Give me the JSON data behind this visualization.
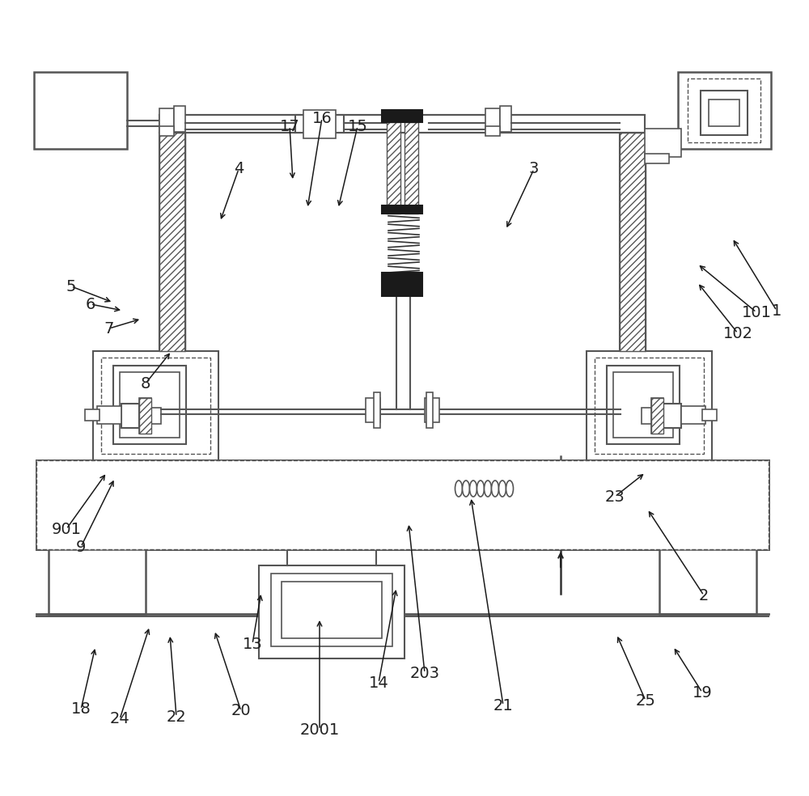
{
  "bg_color": "#ffffff",
  "lc": "#555555",
  "lc_dark": "#222222",
  "label_fontsize": 14,
  "label_color": "#222222",
  "labels_arrows": [
    [
      "1",
      960,
      600,
      905,
      690
    ],
    [
      "2",
      870,
      248,
      800,
      355
    ],
    [
      "3",
      660,
      775,
      625,
      700
    ],
    [
      "4",
      295,
      775,
      272,
      710
    ],
    [
      "5",
      88,
      630,
      140,
      610
    ],
    [
      "6",
      112,
      608,
      152,
      600
    ],
    [
      "7",
      135,
      578,
      175,
      590
    ],
    [
      "8",
      180,
      510,
      212,
      550
    ],
    [
      "9",
      100,
      308,
      142,
      393
    ],
    [
      "901",
      82,
      330,
      132,
      400
    ],
    [
      "13",
      312,
      188,
      323,
      252
    ],
    [
      "14",
      468,
      140,
      490,
      258
    ],
    [
      "15",
      442,
      828,
      418,
      726
    ],
    [
      "16",
      398,
      838,
      380,
      726
    ],
    [
      "17",
      358,
      828,
      362,
      760
    ],
    [
      "18",
      100,
      107,
      118,
      185
    ],
    [
      "19",
      868,
      128,
      832,
      185
    ],
    [
      "20",
      298,
      105,
      265,
      205
    ],
    [
      "21",
      622,
      112,
      582,
      370
    ],
    [
      "22",
      218,
      98,
      210,
      200
    ],
    [
      "23",
      760,
      370,
      798,
      400
    ],
    [
      "24",
      148,
      95,
      185,
      210
    ],
    [
      "25",
      798,
      118,
      762,
      200
    ],
    [
      "101",
      935,
      598,
      862,
      658
    ],
    [
      "102",
      912,
      572,
      862,
      635
    ],
    [
      "203",
      525,
      152,
      505,
      338
    ],
    [
      "2001",
      395,
      82,
      395,
      220
    ]
  ]
}
